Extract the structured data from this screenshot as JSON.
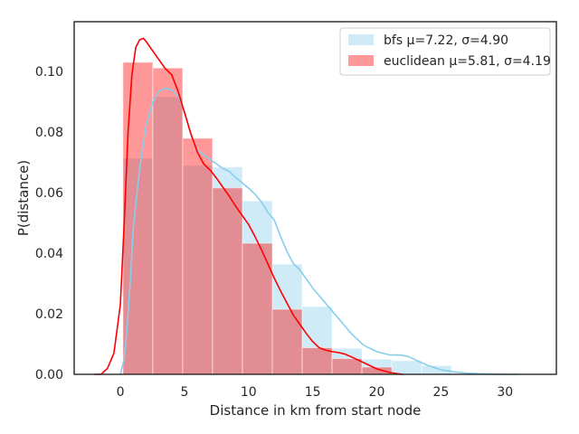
{
  "chart_data": {
    "type": "histogram",
    "title": "",
    "xlabel": "Distance in km from start node",
    "ylabel": "P(distance)",
    "xlim": [
      -3.6,
      34.0
    ],
    "ylim": [
      0.0,
      0.1165
    ],
    "xticks": [
      0,
      5,
      10,
      15,
      20,
      25,
      30
    ],
    "yticks": [
      0.0,
      0.02,
      0.04,
      0.06,
      0.08,
      0.1
    ],
    "ytick_labels": [
      "0.00",
      "0.02",
      "0.04",
      "0.06",
      "0.08",
      "0.10"
    ],
    "grid": false,
    "legend_position": "top-right",
    "series": [
      {
        "name": "bfs μ=7.22, σ=4.90",
        "fill": "#87ceeb",
        "fill_opacity": 0.4,
        "line": "#87ceeb",
        "bin_edges": [
          0.2,
          2.53,
          4.86,
          7.19,
          9.52,
          11.85,
          14.18,
          16.51,
          18.84,
          21.17,
          23.5,
          25.83
        ],
        "values": [
          0.0714,
          0.0917,
          0.069,
          0.0685,
          0.0573,
          0.0364,
          0.0224,
          0.0086,
          0.005,
          0.0045,
          0.0029
        ],
        "kde_x": [
          0.0,
          0.3,
          0.5,
          0.8,
          1.0,
          1.5,
          2.0,
          2.5,
          3.0,
          3.5,
          4.0,
          4.5,
          5.0,
          5.5,
          6.0,
          7.0,
          8.0,
          8.5,
          9.0,
          10.0,
          10.5,
          11.0,
          11.5,
          12.0,
          12.5,
          13.0,
          13.5,
          14.0,
          14.5,
          15.0,
          16.0,
          17.0,
          18.0,
          19.0,
          20.0,
          21.0,
          21.5,
          22.0,
          22.5,
          23.0,
          23.5,
          24.0,
          25.0,
          26.0,
          27.0,
          28.0,
          29.0,
          30.0,
          31.0
        ],
        "kde_y": [
          0.0,
          0.005,
          0.014,
          0.032,
          0.048,
          0.068,
          0.082,
          0.0895,
          0.0935,
          0.0945,
          0.094,
          0.092,
          0.087,
          0.079,
          0.074,
          0.071,
          0.068,
          0.067,
          0.065,
          0.0615,
          0.0595,
          0.057,
          0.0535,
          0.051,
          0.0455,
          0.0405,
          0.0365,
          0.0345,
          0.0315,
          0.0285,
          0.0235,
          0.0185,
          0.0135,
          0.0095,
          0.0075,
          0.0064,
          0.0064,
          0.0063,
          0.0058,
          0.0048,
          0.0038,
          0.0029,
          0.0015,
          0.0008,
          0.0004,
          0.0002,
          0.0001,
          0.0,
          0.0
        ]
      },
      {
        "name": "euclidean μ=5.81, σ=4.19",
        "fill": "#ff0000",
        "fill_opacity": 0.4,
        "line": "#ff0000",
        "bin_edges": [
          0.2,
          2.53,
          4.86,
          7.19,
          9.52,
          11.85,
          14.18,
          16.51,
          18.84,
          21.17
        ],
        "values": [
          0.1031,
          0.1012,
          0.078,
          0.0616,
          0.0433,
          0.0215,
          0.0088,
          0.0052,
          0.0024
        ],
        "kde_x": [
          -2.0,
          -1.5,
          -1.0,
          -0.5,
          0.0,
          0.3,
          0.6,
          0.9,
          1.2,
          1.5,
          1.8,
          2.0,
          2.5,
          3.0,
          3.5,
          4.0,
          4.5,
          5.0,
          5.5,
          6.0,
          6.5,
          7.0,
          7.5,
          8.0,
          8.5,
          9.0,
          9.5,
          10.0,
          10.5,
          11.0,
          11.5,
          12.0,
          12.5,
          13.0,
          13.5,
          14.0,
          14.5,
          15.0,
          15.5,
          16.0,
          16.5,
          17.0,
          17.5,
          18.0,
          18.5,
          19.0,
          19.5,
          20.0,
          21.0,
          22.0
        ],
        "kde_y": [
          0.0,
          0.0,
          0.002,
          0.007,
          0.023,
          0.05,
          0.08,
          0.099,
          0.108,
          0.1105,
          0.111,
          0.11,
          0.107,
          0.104,
          0.101,
          0.099,
          0.0935,
          0.0865,
          0.0795,
          0.0735,
          0.0695,
          0.0675,
          0.0648,
          0.0618,
          0.0588,
          0.0555,
          0.0525,
          0.0495,
          0.0455,
          0.0412,
          0.0365,
          0.0318,
          0.0275,
          0.0235,
          0.0195,
          0.0165,
          0.0135,
          0.0108,
          0.0088,
          0.008,
          0.0075,
          0.0072,
          0.0067,
          0.0058,
          0.0048,
          0.0038,
          0.0028,
          0.0018,
          0.0006,
          0.0
        ]
      }
    ]
  }
}
